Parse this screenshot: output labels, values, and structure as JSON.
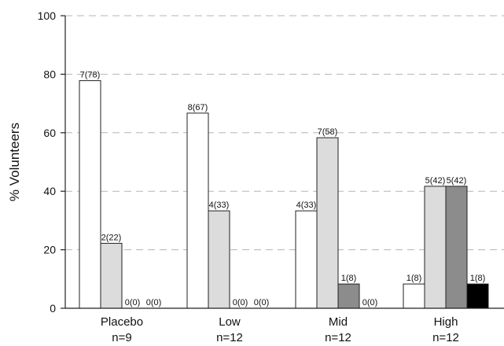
{
  "chart_data": {
    "type": "bar",
    "categories": [
      "Placebo",
      "Low",
      "Mid",
      "High"
    ],
    "category_sublabels": [
      "n=9",
      "n=12",
      "n=12",
      "n=12"
    ],
    "ylabel": "% Volunteers",
    "xlabel": "",
    "title": "",
    "ylim": [
      0,
      100
    ],
    "yticks": [
      "0",
      "20",
      "40",
      "60",
      "80",
      "100"
    ],
    "grid": true,
    "series": [
      {
        "color": "#ffffff",
        "values": [
          77.8,
          66.7,
          33.3,
          8.3
        ],
        "labels": [
          "7(78)",
          "8(67)",
          "4(33)",
          "1(8)"
        ]
      },
      {
        "color": "#dcdcdc",
        "values": [
          22.2,
          33.3,
          58.3,
          41.7
        ],
        "labels": [
          "2(22)",
          "4(33)",
          "7(58)",
          "5(42)"
        ]
      },
      {
        "color": "#8c8c8c",
        "values": [
          0,
          0,
          8.3,
          41.7
        ],
        "labels": [
          "0(0)",
          "0(0)",
          "1(8)",
          "5(42)"
        ]
      },
      {
        "color": "#000000",
        "values": [
          0,
          0,
          0,
          8.3
        ],
        "labels": [
          "0(0)",
          "0(0)",
          "0(0)",
          "1(8)"
        ]
      }
    ]
  }
}
